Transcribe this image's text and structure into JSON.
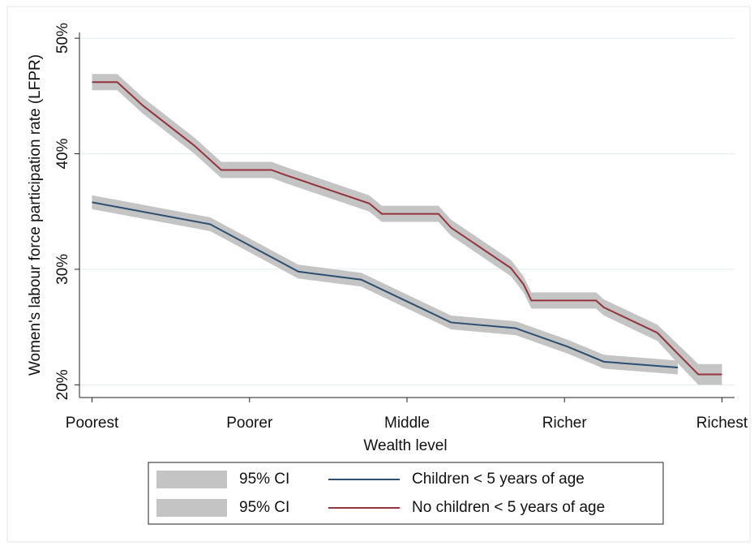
{
  "chart_data": {
    "type": "line",
    "x_label": "Wealth level",
    "y_label": "Women's labour force participation rate (LFPR)",
    "xlim": [
      0.92,
      5.08
    ],
    "xticks": [
      {
        "value": 1,
        "label": "Poorest"
      },
      {
        "value": 2,
        "label": "Poorer"
      },
      {
        "value": 3,
        "label": "Middle"
      },
      {
        "value": 4,
        "label": "Richer"
      },
      {
        "value": 5,
        "label": "Richest"
      }
    ],
    "ylim": [
      18.9,
      50.5
    ],
    "yticks": [
      {
        "value": 20,
        "label": "20%"
      },
      {
        "value": 30,
        "label": "30%"
      },
      {
        "value": 40,
        "label": "40%"
      },
      {
        "value": 50,
        "label": "50%"
      }
    ],
    "grid": true,
    "legend": "bottom",
    "band_color": "#c4c4c4",
    "series": [
      {
        "name": "Children < 5 years of age",
        "ci_name": "95% CI",
        "color": "#2c4e70",
        "x": [
          1,
          1.75,
          2.31,
          2.71,
          3.28,
          3.69,
          4.02,
          4.25,
          4.72
        ],
        "values": [
          35.8,
          33.9,
          29.8,
          29.1,
          25.4,
          24.9,
          23.3,
          22.0,
          21.5
        ],
        "ci_upper": [
          36.4,
          34.5,
          30.4,
          29.7,
          26.0,
          25.5,
          23.9,
          22.6,
          22.1
        ],
        "ci_lower": [
          35.2,
          33.3,
          29.2,
          28.5,
          24.8,
          24.3,
          22.7,
          21.4,
          20.9
        ]
      },
      {
        "name": "No children < 5 years of age",
        "ci_name": "95% CI",
        "color": "#93343c",
        "x": [
          1,
          1.16,
          1.32,
          1.65,
          1.82,
          2.14,
          2.22,
          2.76,
          2.84,
          3.2,
          3.28,
          3.66,
          3.74,
          3.79,
          3.87,
          4.2,
          4.25,
          4.59,
          4.69,
          4.85,
          5
        ],
        "values": [
          46.2,
          46.2,
          44.2,
          40.7,
          38.6,
          38.6,
          38.2,
          35.7,
          34.8,
          34.8,
          33.6,
          30.1,
          28.7,
          27.3,
          27.3,
          27.3,
          26.7,
          24.5,
          23.1,
          20.9,
          20.9
        ],
        "ci_upper": [
          46.9,
          46.9,
          44.9,
          41.4,
          39.3,
          39.3,
          38.9,
          36.4,
          35.5,
          35.5,
          34.3,
          30.8,
          29.4,
          28.0,
          28.0,
          28.0,
          27.4,
          25.2,
          23.9,
          21.8,
          21.8
        ],
        "ci_lower": [
          45.5,
          45.5,
          43.5,
          40.0,
          37.9,
          37.9,
          37.5,
          35.0,
          34.1,
          34.1,
          32.9,
          29.4,
          28.0,
          26.6,
          26.6,
          26.6,
          26.0,
          23.8,
          22.3,
          20.0,
          20.0
        ]
      }
    ]
  }
}
